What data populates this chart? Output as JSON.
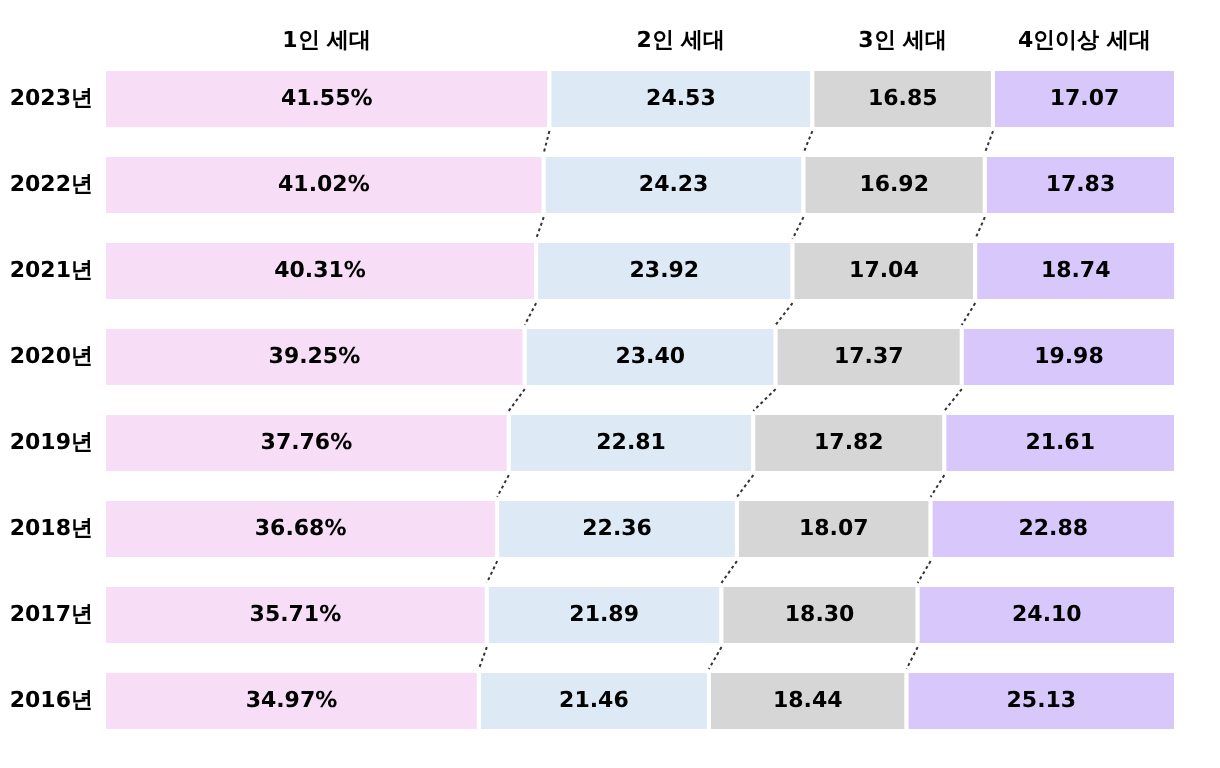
{
  "chart_data": {
    "type": "bar",
    "orientation": "horizontal",
    "stacked": true,
    "categories": [
      "2023년",
      "2022년",
      "2021년",
      "2020년",
      "2019년",
      "2018년",
      "2017년",
      "2016년"
    ],
    "series": [
      {
        "name": "1인 세대",
        "color": "#f7def6",
        "values": [
          41.55,
          41.02,
          40.31,
          39.25,
          37.76,
          36.68,
          35.71,
          34.97
        ],
        "value_labels": [
          "41.55%",
          "41.02%",
          "40.31%",
          "39.25%",
          "37.76%",
          "36.68%",
          "35.71%",
          "34.97%"
        ]
      },
      {
        "name": "2인 세대",
        "color": "#dde9f5",
        "values": [
          24.53,
          24.23,
          23.92,
          23.4,
          22.81,
          22.36,
          21.89,
          21.46
        ],
        "value_labels": [
          "24.53",
          "24.23",
          "23.92",
          "23.40",
          "22.81",
          "22.36",
          "21.89",
          "21.46"
        ]
      },
      {
        "name": "3인 세대",
        "color": "#d6d6d6",
        "values": [
          16.85,
          16.92,
          17.04,
          17.37,
          17.82,
          18.07,
          18.3,
          18.44
        ],
        "value_labels": [
          "16.85",
          "16.92",
          "17.04",
          "17.37",
          "17.82",
          "18.07",
          "18.30",
          "18.44"
        ]
      },
      {
        "name": "4인이상 세대",
        "color": "#d8c7fb",
        "values": [
          17.07,
          17.83,
          18.74,
          19.98,
          21.61,
          22.88,
          24.1,
          25.13
        ],
        "value_labels": [
          "17.07",
          "17.83",
          "18.74",
          "19.98",
          "21.61",
          "22.88",
          "24.10",
          "25.13"
        ]
      }
    ],
    "xlim": [
      0,
      100
    ],
    "tick_labels": "y",
    "legend": "top"
  }
}
